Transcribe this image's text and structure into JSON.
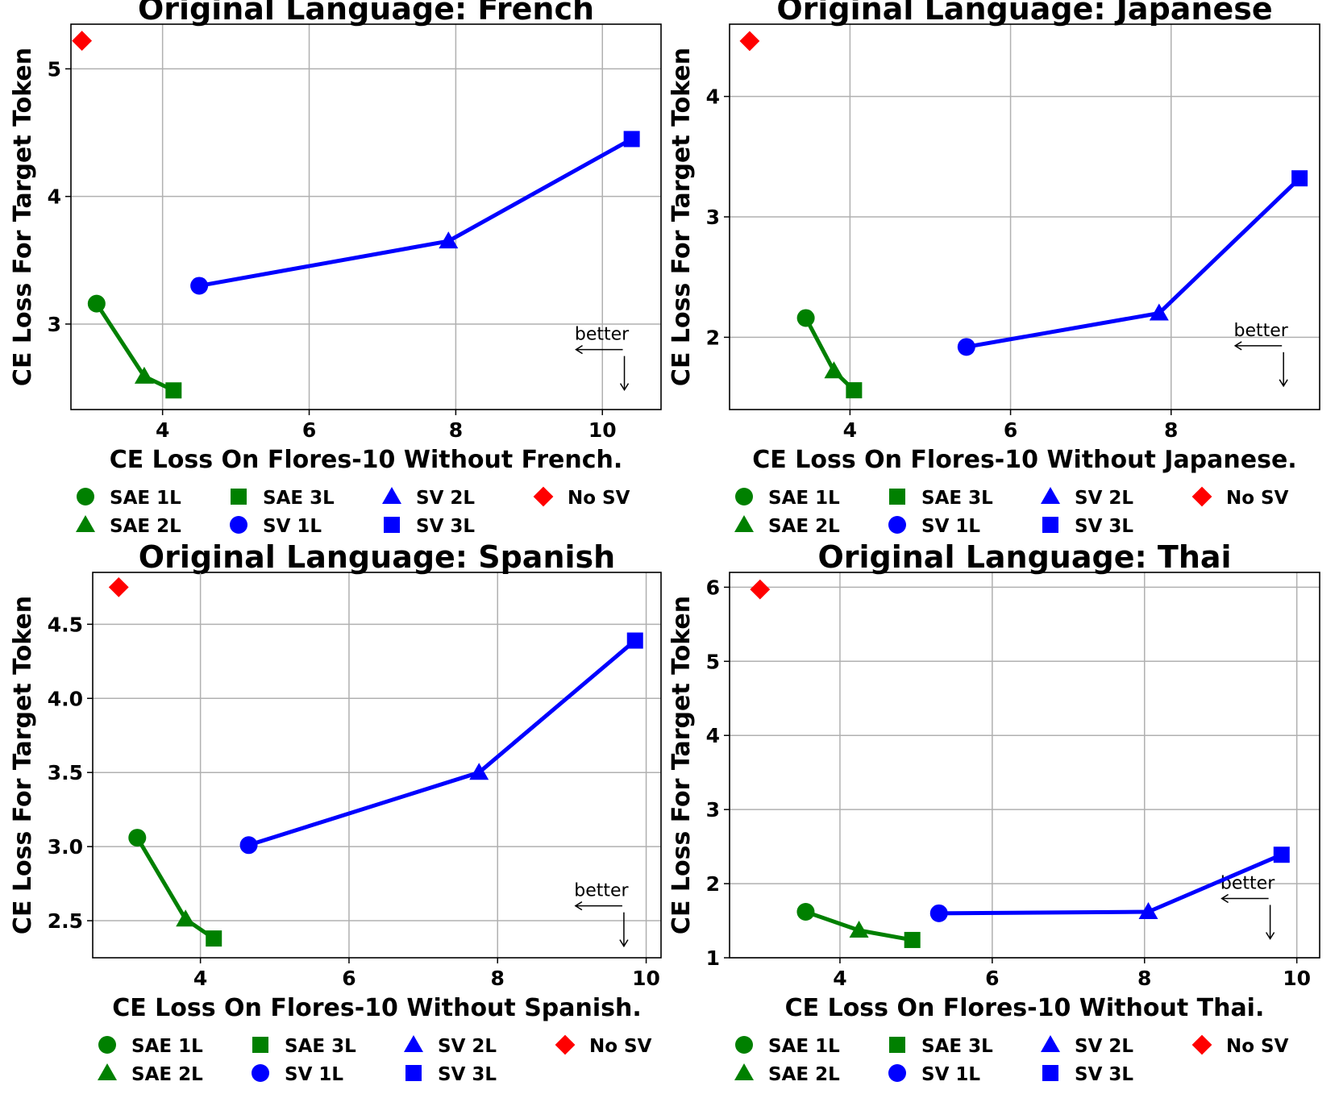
{
  "colors": {
    "sae": "#008000",
    "sv": "#0000ff",
    "nosv": "#ff0000",
    "grid": "#b0b0b0"
  },
  "legend_entries": [
    {
      "label": "SAE 1L",
      "marker": "circle",
      "color": "#008000"
    },
    {
      "label": "SAE 2L",
      "marker": "triangle",
      "color": "#008000"
    },
    {
      "label": "SAE 3L",
      "marker": "square",
      "color": "#008000"
    },
    {
      "label": "SV 1L",
      "marker": "circle",
      "color": "#0000ff"
    },
    {
      "label": "SV 2L",
      "marker": "triangle",
      "color": "#0000ff"
    },
    {
      "label": "SV 3L",
      "marker": "square",
      "color": "#0000ff"
    },
    {
      "label": "No SV",
      "marker": "diamond",
      "color": "#ff0000"
    }
  ],
  "annotation_text": "better",
  "chart_data": [
    {
      "type": "line",
      "title": "Original Language: French",
      "xlabel": "CE Loss On Flores-10 Without French.",
      "ylabel": "CE Loss For Target Token",
      "xlim": [
        2.75,
        10.8
      ],
      "ylim": [
        2.33,
        5.35
      ],
      "xticks": [
        4,
        6,
        8,
        10
      ],
      "yticks": [
        3,
        4,
        5
      ],
      "ytick_labels": [
        "3",
        "4",
        "5"
      ],
      "grid": true,
      "legend_placement": "below",
      "annotation_anchor": {
        "x": 10.3,
        "y": 2.8
      },
      "series": [
        {
          "name": "SAE",
          "color": "#008000",
          "points": [
            {
              "label": "SAE 1L",
              "marker": "circle",
              "x": 3.1,
              "y": 3.16
            },
            {
              "label": "SAE 2L",
              "marker": "triangle",
              "x": 3.75,
              "y": 2.59
            },
            {
              "label": "SAE 3L",
              "marker": "square",
              "x": 4.15,
              "y": 2.48
            }
          ]
        },
        {
          "name": "SV",
          "color": "#0000ff",
          "points": [
            {
              "label": "SV 1L",
              "marker": "circle",
              "x": 4.5,
              "y": 3.3
            },
            {
              "label": "SV 2L",
              "marker": "triangle",
              "x": 7.9,
              "y": 3.65
            },
            {
              "label": "SV 3L",
              "marker": "square",
              "x": 10.4,
              "y": 4.45
            }
          ]
        },
        {
          "name": "No SV",
          "color": "#ff0000",
          "points": [
            {
              "label": "No SV",
              "marker": "diamond",
              "x": 2.9,
              "y": 5.22
            }
          ]
        }
      ]
    },
    {
      "type": "line",
      "title": "Original Language: Japanese",
      "xlabel": "CE Loss On Flores-10 Without Japanese.",
      "ylabel": "CE Loss For Target Token",
      "xlim": [
        2.5,
        9.85
      ],
      "ylim": [
        1.4,
        4.6
      ],
      "xticks": [
        4,
        6,
        8
      ],
      "yticks": [
        2,
        3,
        4
      ],
      "ytick_labels": [
        "2",
        "3",
        "4"
      ],
      "grid": true,
      "legend_placement": "below",
      "annotation_anchor": {
        "x": 9.4,
        "y": 1.93
      },
      "series": [
        {
          "name": "SAE",
          "color": "#008000",
          "points": [
            {
              "label": "SAE 1L",
              "marker": "circle",
              "x": 3.45,
              "y": 2.16
            },
            {
              "label": "SAE 2L",
              "marker": "triangle",
              "x": 3.8,
              "y": 1.72
            },
            {
              "label": "SAE 3L",
              "marker": "square",
              "x": 4.05,
              "y": 1.56
            }
          ]
        },
        {
          "name": "SV",
          "color": "#0000ff",
          "points": [
            {
              "label": "SV 1L",
              "marker": "circle",
              "x": 5.45,
              "y": 1.92
            },
            {
              "label": "SV 2L",
              "marker": "triangle",
              "x": 7.85,
              "y": 2.2
            },
            {
              "label": "SV 3L",
              "marker": "square",
              "x": 9.6,
              "y": 3.32
            }
          ]
        },
        {
          "name": "No SV",
          "color": "#ff0000",
          "points": [
            {
              "label": "No SV",
              "marker": "diamond",
              "x": 2.75,
              "y": 4.46
            }
          ]
        }
      ]
    },
    {
      "type": "line",
      "title": "Original Language: Spanish",
      "xlabel": "CE Loss On Flores-10 Without Spanish.",
      "ylabel": "CE Loss For Target Token",
      "xlim": [
        2.55,
        10.2
      ],
      "ylim": [
        2.25,
        4.85
      ],
      "xticks": [
        4,
        6,
        8,
        10
      ],
      "yticks": [
        2.5,
        3.0,
        3.5,
        4.0,
        4.5
      ],
      "ytick_labels": [
        "2.5",
        "3.0",
        "3.5",
        "4.0",
        "4.5"
      ],
      "grid": true,
      "legend_placement": "below",
      "annotation_anchor": {
        "x": 9.7,
        "y": 2.6
      },
      "series": [
        {
          "name": "SAE",
          "color": "#008000",
          "points": [
            {
              "label": "SAE 1L",
              "marker": "circle",
              "x": 3.15,
              "y": 3.06
            },
            {
              "label": "SAE 2L",
              "marker": "triangle",
              "x": 3.8,
              "y": 2.51
            },
            {
              "label": "SAE 3L",
              "marker": "square",
              "x": 4.18,
              "y": 2.38
            }
          ]
        },
        {
          "name": "SV",
          "color": "#0000ff",
          "points": [
            {
              "label": "SV 1L",
              "marker": "circle",
              "x": 4.65,
              "y": 3.01
            },
            {
              "label": "SV 2L",
              "marker": "triangle",
              "x": 7.75,
              "y": 3.5
            },
            {
              "label": "SV 3L",
              "marker": "square",
              "x": 9.85,
              "y": 4.39
            }
          ]
        },
        {
          "name": "No SV",
          "color": "#ff0000",
          "points": [
            {
              "label": "No SV",
              "marker": "diamond",
              "x": 2.9,
              "y": 4.75
            }
          ]
        }
      ]
    },
    {
      "type": "line",
      "title": "Original Language: Thai",
      "xlabel": "CE Loss On Flores-10 Without Thai.",
      "ylabel": "CE Loss For Target Token",
      "xlim": [
        2.55,
        10.3
      ],
      "ylim": [
        1.0,
        6.2
      ],
      "xticks": [
        4,
        6,
        8,
        10
      ],
      "yticks": [
        1,
        2,
        3,
        4,
        5,
        6
      ],
      "ytick_labels": [
        "1",
        "2",
        "3",
        "4",
        "5",
        "6"
      ],
      "grid": true,
      "legend_placement": "below",
      "annotation_anchor": {
        "x": 9.65,
        "y": 1.8
      },
      "series": [
        {
          "name": "SAE",
          "color": "#008000",
          "points": [
            {
              "label": "SAE 1L",
              "marker": "circle",
              "x": 3.55,
              "y": 1.62
            },
            {
              "label": "SAE 2L",
              "marker": "triangle",
              "x": 4.25,
              "y": 1.37
            },
            {
              "label": "SAE 3L",
              "marker": "square",
              "x": 4.95,
              "y": 1.24
            }
          ]
        },
        {
          "name": "SV",
          "color": "#0000ff",
          "points": [
            {
              "label": "SV 1L",
              "marker": "circle",
              "x": 5.3,
              "y": 1.6
            },
            {
              "label": "SV 2L",
              "marker": "triangle",
              "x": 8.05,
              "y": 1.62
            },
            {
              "label": "SV 3L",
              "marker": "square",
              "x": 9.8,
              "y": 2.39
            }
          ]
        },
        {
          "name": "No SV",
          "color": "#ff0000",
          "points": [
            {
              "label": "No SV",
              "marker": "diamond",
              "x": 2.95,
              "y": 5.97
            }
          ]
        }
      ]
    }
  ]
}
